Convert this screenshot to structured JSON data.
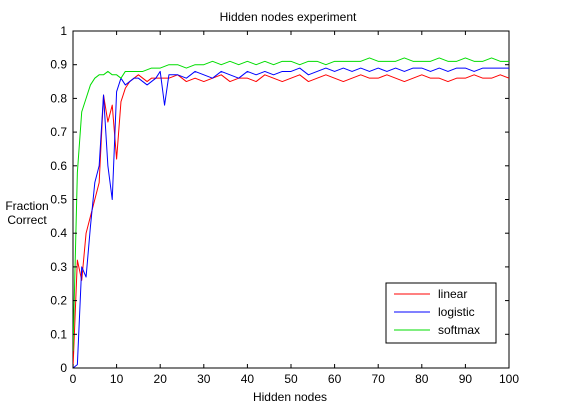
{
  "chart_data": {
    "type": "line",
    "title": "Hidden nodes experiment",
    "xlabel": "Hidden nodes",
    "ylabel_lines": [
      "Fraction",
      "Correct"
    ],
    "xlim": [
      0,
      100
    ],
    "ylim": [
      0,
      1
    ],
    "x_ticks": [
      0,
      10,
      20,
      30,
      40,
      50,
      60,
      70,
      80,
      90,
      100
    ],
    "y_ticks": [
      0,
      0.1,
      0.2,
      0.3,
      0.4,
      0.5,
      0.6,
      0.7,
      0.8,
      0.9,
      1
    ],
    "x_tick_labels": [
      "0",
      "10",
      "20",
      "30",
      "40",
      "50",
      "60",
      "70",
      "80",
      "90",
      "100"
    ],
    "y_tick_labels": [
      "0",
      "0.1",
      "0.2",
      "0.3",
      "0.4",
      "0.5",
      "0.6",
      "0.7",
      "0.8",
      "0.9",
      "1"
    ],
    "grid": false,
    "legend_position": "bottom-right",
    "series": [
      {
        "name": "linear",
        "color": "#ff0000",
        "points": [
          [
            0,
            0.0
          ],
          [
            1,
            0.32
          ],
          [
            2,
            0.26
          ],
          [
            3,
            0.4
          ],
          [
            4,
            0.45
          ],
          [
            5,
            0.5
          ],
          [
            6,
            0.55
          ],
          [
            7,
            0.81
          ],
          [
            8,
            0.73
          ],
          [
            9,
            0.78
          ],
          [
            10,
            0.62
          ],
          [
            11,
            0.79
          ],
          [
            12,
            0.83
          ],
          [
            13,
            0.85
          ],
          [
            14,
            0.86
          ],
          [
            15,
            0.87
          ],
          [
            16,
            0.86
          ],
          [
            17,
            0.85
          ],
          [
            18,
            0.86
          ],
          [
            19,
            0.86
          ],
          [
            20,
            0.86
          ],
          [
            22,
            0.86
          ],
          [
            24,
            0.87
          ],
          [
            26,
            0.85
          ],
          [
            28,
            0.86
          ],
          [
            30,
            0.85
          ],
          [
            32,
            0.86
          ],
          [
            34,
            0.87
          ],
          [
            36,
            0.85
          ],
          [
            38,
            0.86
          ],
          [
            40,
            0.86
          ],
          [
            42,
            0.85
          ],
          [
            44,
            0.87
          ],
          [
            46,
            0.86
          ],
          [
            48,
            0.85
          ],
          [
            50,
            0.86
          ],
          [
            52,
            0.87
          ],
          [
            54,
            0.85
          ],
          [
            56,
            0.86
          ],
          [
            58,
            0.87
          ],
          [
            60,
            0.86
          ],
          [
            62,
            0.85
          ],
          [
            64,
            0.86
          ],
          [
            66,
            0.87
          ],
          [
            68,
            0.86
          ],
          [
            70,
            0.86
          ],
          [
            72,
            0.87
          ],
          [
            74,
            0.86
          ],
          [
            76,
            0.85
          ],
          [
            78,
            0.86
          ],
          [
            80,
            0.87
          ],
          [
            82,
            0.86
          ],
          [
            84,
            0.86
          ],
          [
            86,
            0.85
          ],
          [
            88,
            0.86
          ],
          [
            90,
            0.86
          ],
          [
            92,
            0.87
          ],
          [
            94,
            0.86
          ],
          [
            96,
            0.86
          ],
          [
            98,
            0.87
          ],
          [
            100,
            0.86
          ]
        ]
      },
      {
        "name": "logistic",
        "color": "#0000ff",
        "points": [
          [
            0,
            0.0
          ],
          [
            1,
            0.01
          ],
          [
            2,
            0.3
          ],
          [
            3,
            0.27
          ],
          [
            4,
            0.42
          ],
          [
            5,
            0.55
          ],
          [
            6,
            0.6
          ],
          [
            7,
            0.81
          ],
          [
            8,
            0.6
          ],
          [
            9,
            0.5
          ],
          [
            10,
            0.82
          ],
          [
            11,
            0.86
          ],
          [
            12,
            0.84
          ],
          [
            13,
            0.85
          ],
          [
            14,
            0.86
          ],
          [
            15,
            0.86
          ],
          [
            16,
            0.85
          ],
          [
            17,
            0.84
          ],
          [
            18,
            0.85
          ],
          [
            19,
            0.86
          ],
          [
            20,
            0.88
          ],
          [
            21,
            0.78
          ],
          [
            22,
            0.87
          ],
          [
            24,
            0.87
          ],
          [
            26,
            0.86
          ],
          [
            28,
            0.88
          ],
          [
            30,
            0.87
          ],
          [
            32,
            0.86
          ],
          [
            34,
            0.88
          ],
          [
            36,
            0.87
          ],
          [
            38,
            0.86
          ],
          [
            40,
            0.88
          ],
          [
            42,
            0.87
          ],
          [
            44,
            0.88
          ],
          [
            46,
            0.87
          ],
          [
            48,
            0.88
          ],
          [
            50,
            0.88
          ],
          [
            52,
            0.89
          ],
          [
            54,
            0.87
          ],
          [
            56,
            0.88
          ],
          [
            58,
            0.89
          ],
          [
            60,
            0.88
          ],
          [
            62,
            0.89
          ],
          [
            64,
            0.88
          ],
          [
            66,
            0.89
          ],
          [
            68,
            0.88
          ],
          [
            70,
            0.89
          ],
          [
            72,
            0.88
          ],
          [
            74,
            0.89
          ],
          [
            76,
            0.88
          ],
          [
            78,
            0.89
          ],
          [
            80,
            0.89
          ],
          [
            82,
            0.88
          ],
          [
            84,
            0.89
          ],
          [
            86,
            0.88
          ],
          [
            88,
            0.89
          ],
          [
            90,
            0.89
          ],
          [
            92,
            0.88
          ],
          [
            94,
            0.89
          ],
          [
            96,
            0.89
          ],
          [
            98,
            0.89
          ],
          [
            100,
            0.89
          ]
        ]
      },
      {
        "name": "softmax",
        "color": "#00dd00",
        "points": [
          [
            0,
            0.05
          ],
          [
            1,
            0.58
          ],
          [
            2,
            0.76
          ],
          [
            3,
            0.8
          ],
          [
            4,
            0.84
          ],
          [
            5,
            0.86
          ],
          [
            6,
            0.87
          ],
          [
            7,
            0.87
          ],
          [
            8,
            0.88
          ],
          [
            9,
            0.87
          ],
          [
            10,
            0.87
          ],
          [
            11,
            0.86
          ],
          [
            12,
            0.88
          ],
          [
            14,
            0.88
          ],
          [
            16,
            0.88
          ],
          [
            18,
            0.89
          ],
          [
            20,
            0.89
          ],
          [
            22,
            0.9
          ],
          [
            24,
            0.9
          ],
          [
            26,
            0.89
          ],
          [
            28,
            0.9
          ],
          [
            30,
            0.9
          ],
          [
            32,
            0.91
          ],
          [
            34,
            0.9
          ],
          [
            36,
            0.91
          ],
          [
            38,
            0.9
          ],
          [
            40,
            0.91
          ],
          [
            42,
            0.9
          ],
          [
            44,
            0.91
          ],
          [
            46,
            0.9
          ],
          [
            48,
            0.91
          ],
          [
            50,
            0.91
          ],
          [
            52,
            0.9
          ],
          [
            54,
            0.91
          ],
          [
            56,
            0.91
          ],
          [
            58,
            0.9
          ],
          [
            60,
            0.91
          ],
          [
            62,
            0.91
          ],
          [
            64,
            0.91
          ],
          [
            66,
            0.91
          ],
          [
            68,
            0.92
          ],
          [
            70,
            0.91
          ],
          [
            72,
            0.91
          ],
          [
            74,
            0.91
          ],
          [
            76,
            0.92
          ],
          [
            78,
            0.91
          ],
          [
            80,
            0.91
          ],
          [
            82,
            0.91
          ],
          [
            84,
            0.92
          ],
          [
            86,
            0.91
          ],
          [
            88,
            0.91
          ],
          [
            90,
            0.92
          ],
          [
            92,
            0.91
          ],
          [
            94,
            0.91
          ],
          [
            96,
            0.92
          ],
          [
            98,
            0.91
          ],
          [
            100,
            0.91
          ]
        ]
      }
    ]
  }
}
